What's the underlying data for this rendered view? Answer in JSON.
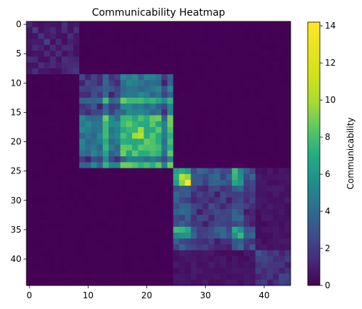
{
  "chart_data": {
    "type": "heatmap",
    "title": "Communicability Heatmap",
    "n": 45,
    "colormap": "viridis",
    "x_ticks": [
      0,
      10,
      20,
      30,
      40
    ],
    "y_ticks": [
      0,
      5,
      10,
      15,
      20,
      25,
      30,
      35,
      40
    ],
    "colorbar": {
      "label": "Communicability",
      "min": 0,
      "max": 14.2,
      "ticks": [
        0,
        2,
        4,
        6,
        8,
        10,
        12,
        14
      ]
    },
    "communities": [
      {
        "start": 0,
        "end": 8,
        "base": 1.2
      },
      {
        "start": 9,
        "end": 24,
        "base": 2.5
      },
      {
        "start": 25,
        "end": 38,
        "base": 2.0
      },
      {
        "start": 39,
        "end": 44,
        "base": 1.8
      }
    ],
    "hub_nodes": [
      13,
      16,
      17,
      18,
      19,
      20,
      21,
      22,
      24
    ],
    "bright_cells": [
      {
        "row": 26,
        "col": 26,
        "value": 10.5
      },
      {
        "row": 26,
        "col": 27,
        "value": 9.5
      },
      {
        "row": 27,
        "col": 26,
        "value": 9.5
      },
      {
        "row": 27,
        "col": 27,
        "value": 14.2
      },
      {
        "row": 19,
        "col": 19,
        "value": 10.5
      },
      {
        "row": 18,
        "col": 19,
        "value": 9.8
      },
      {
        "row": 19,
        "col": 18,
        "value": 9.8
      },
      {
        "row": 26,
        "col": 35,
        "value": 7.5
      },
      {
        "row": 35,
        "col": 26,
        "value": 7.5
      },
      {
        "row": 35,
        "col": 35,
        "value": 7.0
      }
    ]
  }
}
